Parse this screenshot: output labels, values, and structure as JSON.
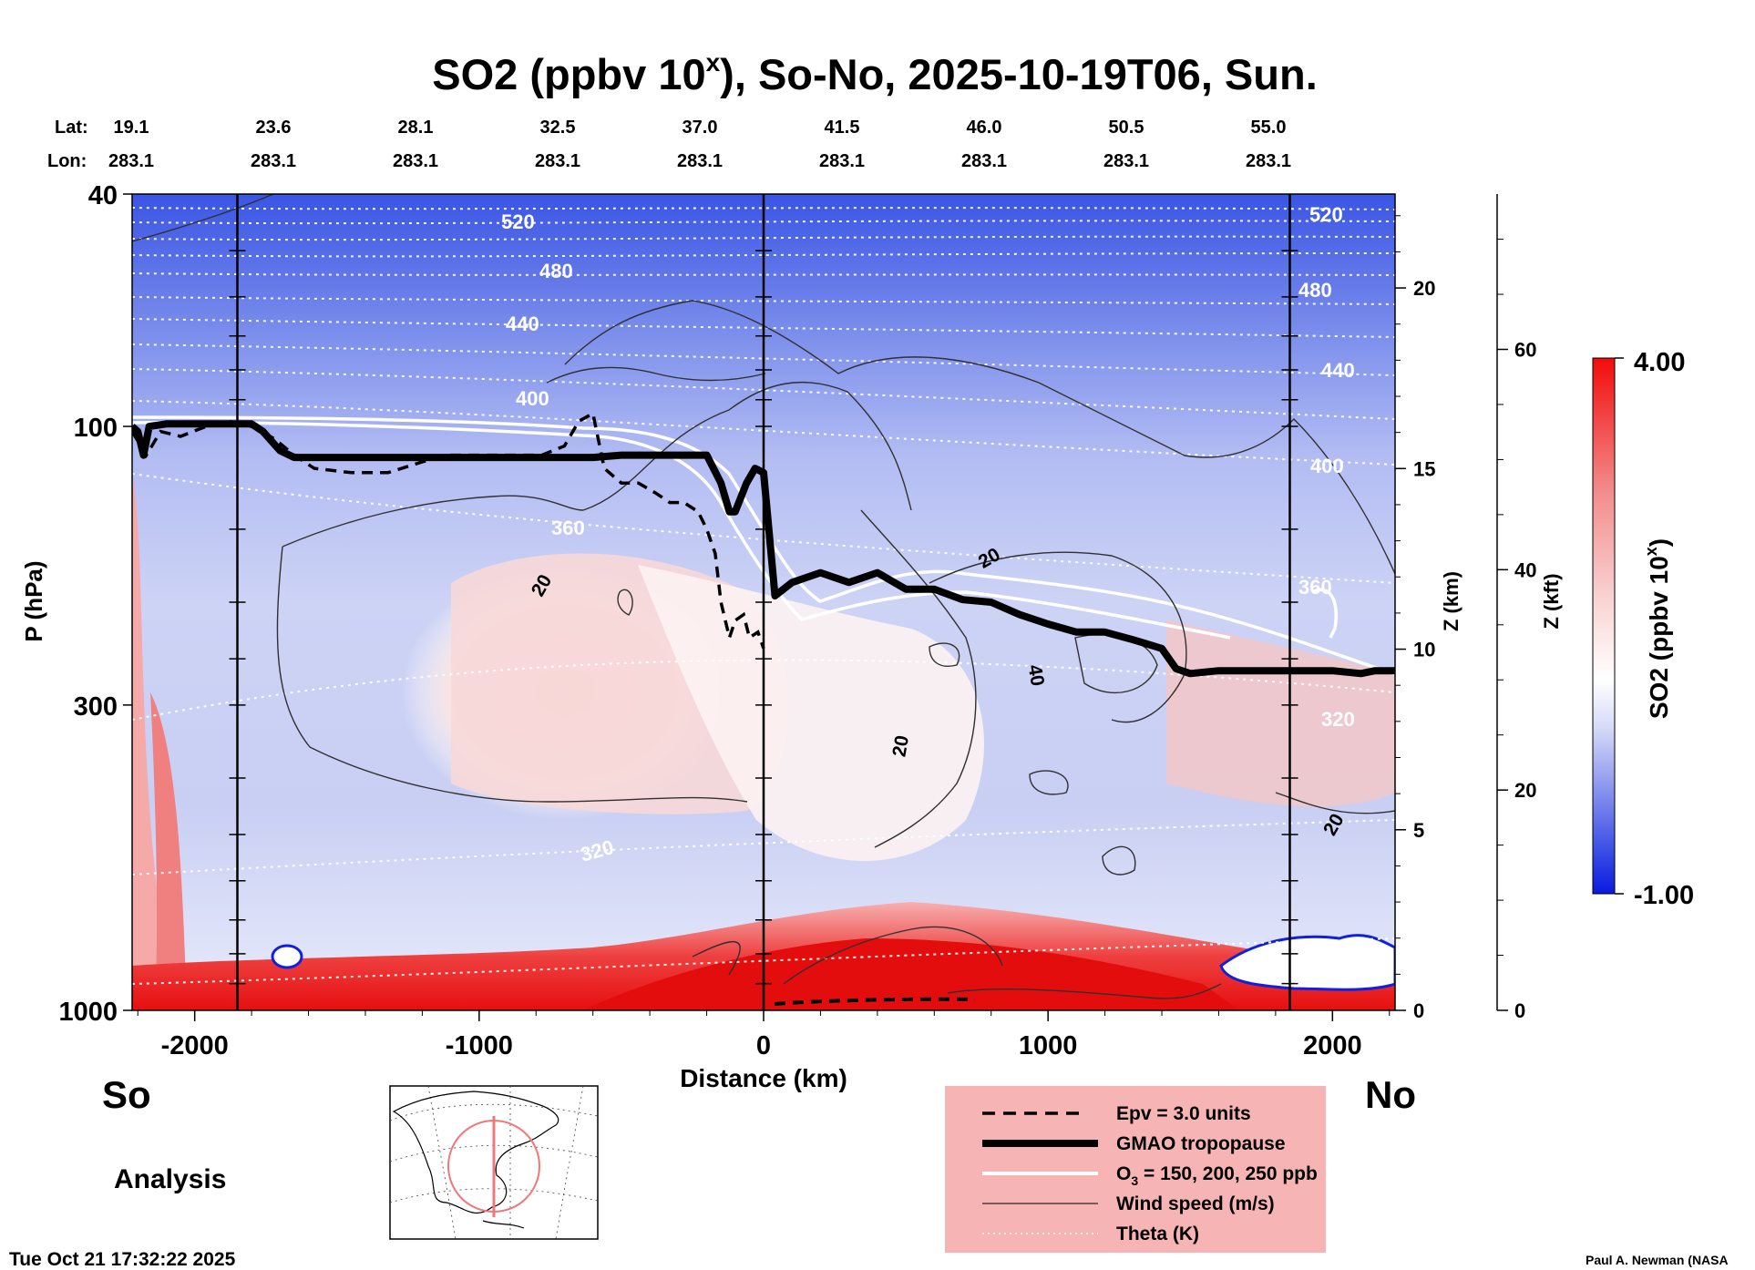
{
  "chart_data": {
    "type": "heatmap",
    "title_main": "SO2 (ppbv 10",
    "title_sup": "x",
    "title_rest": "), So-No, 2025-10-19T06, Sun.",
    "lat_label": "Lat:",
    "lon_label": "Lon:",
    "lats": [
      "19.1",
      "23.6",
      "28.1",
      "32.5",
      "37.0",
      "41.5",
      "46.0",
      "50.5",
      "55.0"
    ],
    "lons": [
      "283.1",
      "283.1",
      "283.1",
      "283.1",
      "283.1",
      "283.1",
      "283.1",
      "283.1",
      "283.1"
    ],
    "xlabel": "Distance (km)",
    "xlim": [
      -2220,
      2220
    ],
    "xticks": [
      -2000,
      -1000,
      0,
      1000,
      2000
    ],
    "xtick_labels": [
      "-2000",
      "-1000",
      "0",
      "1000",
      "2000"
    ],
    "vertical_markers_km": [
      -1850,
      0,
      1850
    ],
    "ylabel": "P (hPa)",
    "ylim_hpa": [
      1000,
      40
    ],
    "yticks_hpa": [
      40,
      100,
      300,
      1000
    ],
    "ytick_labels": [
      "40",
      "100",
      "300",
      "1000"
    ],
    "z_km_label": "Z (km)",
    "z_km_ticks": [
      "0",
      "5",
      "10",
      "15",
      "20"
    ],
    "z_kft_label": "Z (kft)",
    "z_kft_ticks": [
      "0",
      "20",
      "40",
      "60"
    ],
    "colorbar": {
      "label_main": "SO2 (ppbv 10",
      "label_sup": "x",
      "label_end": ")",
      "max_label": "4.00",
      "min_label": "-1.00",
      "min": -1.0,
      "max": 4.0,
      "low_color": "#0a1adf",
      "mid_color": "#ffffff",
      "high_color": "#f20c0c"
    },
    "tropopause": {
      "name": "GMAO tropopause",
      "km": [
        -2220,
        -2200,
        -2180,
        -2160,
        -2100,
        -2000,
        -1900,
        -1800,
        -1760,
        -1700,
        -1650,
        -1600,
        -1500,
        -1400,
        -1300,
        -1200,
        -1100,
        -1000,
        -900,
        -800,
        -700,
        -600,
        -500,
        -400,
        -300,
        -200,
        -150,
        -120,
        -100,
        -60,
        -30,
        0,
        40,
        100,
        200,
        300,
        400,
        500,
        600,
        700,
        800,
        900,
        1000,
        1100,
        1200,
        1300,
        1400,
        1450,
        1500,
        1600,
        1700,
        1800,
        1900,
        2000,
        2100,
        2150,
        2220
      ],
      "p_hpa": [
        100,
        102,
        112,
        100,
        99,
        99,
        99,
        99,
        102,
        110,
        113,
        113,
        113,
        113,
        113,
        113,
        113,
        113,
        113,
        113,
        113,
        113,
        112,
        112,
        112,
        112,
        125,
        140,
        140,
        125,
        118,
        120,
        195,
        185,
        178,
        185,
        178,
        190,
        190,
        198,
        200,
        210,
        218,
        225,
        225,
        232,
        240,
        260,
        265,
        262,
        262,
        262,
        262,
        262,
        265,
        262,
        262
      ]
    },
    "epv_line": {
      "name": "Epv = 3.0 units",
      "km": [
        -2220,
        -2170,
        -2120,
        -2050,
        -1960,
        -1880,
        -1800,
        -1720,
        -1650,
        -1580,
        -1450,
        -1320,
        -1200,
        -1120,
        -1020,
        -900,
        -780,
        -700,
        -650,
        -600,
        -560,
        -500,
        -440,
        -380,
        -330,
        -280,
        -230,
        -200,
        -170,
        -150,
        -120,
        -100,
        -70,
        -50,
        -20,
        0
      ],
      "p_hpa": [
        102,
        112,
        102,
        104,
        100,
        98,
        100,
        105,
        112,
        118,
        120,
        120,
        115,
        112,
        112,
        112,
        112,
        108,
        98,
        95,
        118,
        125,
        125,
        130,
        135,
        135,
        140,
        150,
        165,
        200,
        230,
        215,
        210,
        230,
        225,
        240
      ]
    },
    "wind_contour_labels": [
      "20",
      "40",
      "20",
      "20",
      "20"
    ],
    "theta_labels": [
      "520",
      "480",
      "440",
      "400",
      "360",
      "320",
      "520",
      "480",
      "440",
      "400",
      "360",
      "320"
    ],
    "so_label": "So",
    "no_label": "No",
    "analysis_label": "Analysis",
    "timestamp": "Tue Oct 21 17:32:22 2025",
    "credit": "Paul A. Newman (NASA",
    "legend": [
      {
        "style": "dashed",
        "label": "Epv = 3.0 units"
      },
      {
        "style": "thick",
        "label": "GMAO tropopause"
      },
      {
        "style": "white",
        "label_main": "O",
        "label_sub": "3",
        "label_rest": " = 150, 200, 250 ppb"
      },
      {
        "style": "thin",
        "label": "Wind speed (m/s)"
      },
      {
        "style": "dotted",
        "label": "Theta (K)"
      }
    ]
  }
}
